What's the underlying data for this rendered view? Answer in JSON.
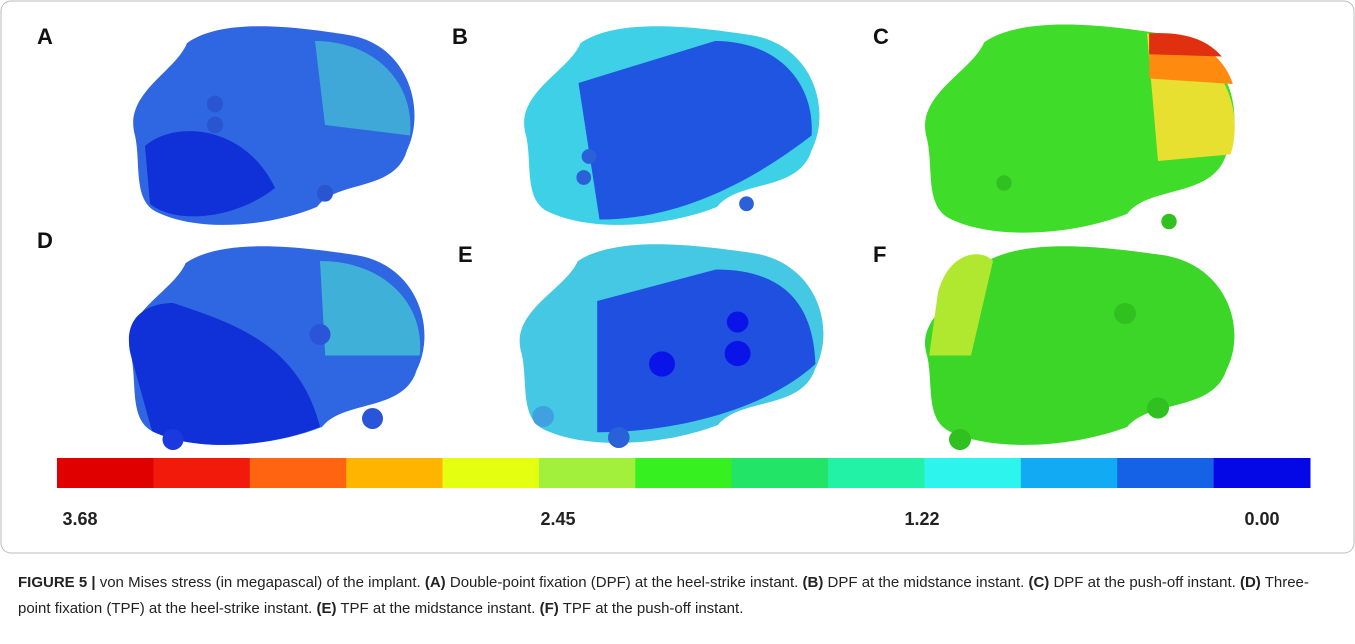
{
  "panels": [
    {
      "label": "A"
    },
    {
      "label": "B"
    },
    {
      "label": "C"
    },
    {
      "label": "D"
    },
    {
      "label": "E"
    },
    {
      "label": "F"
    }
  ],
  "colorbar": {
    "colors": [
      "#e00000",
      "#f21a0a",
      "#ff6410",
      "#ffb400",
      "#e4ff10",
      "#a2f03c",
      "#36f020",
      "#22e466",
      "#22f2a6",
      "#2ef4ee",
      "#12aaf2",
      "#1662e6",
      "#0408e6"
    ],
    "labels": [
      "3.68",
      "2.45",
      "1.22",
      "0.00"
    ]
  },
  "caption": {
    "label": "FIGURE 5 |",
    "intro": "von Mises stress (in megapascal) of the implant.",
    "items": [
      {
        "tag": "(A)",
        "text": "Double-point fixation (DPF) at the heel-strike instant."
      },
      {
        "tag": "(B)",
        "text": "DPF at the midstance instant."
      },
      {
        "tag": "(C)",
        "text": "DPF at the push-off instant."
      },
      {
        "tag": "(D)",
        "text": "Three-point fixation (TPF) at the heel-strike instant."
      },
      {
        "tag": "(E)",
        "text": "TPF at the midstance instant."
      },
      {
        "tag": "(F)",
        "text": "TPF at the push-off instant."
      }
    ]
  }
}
